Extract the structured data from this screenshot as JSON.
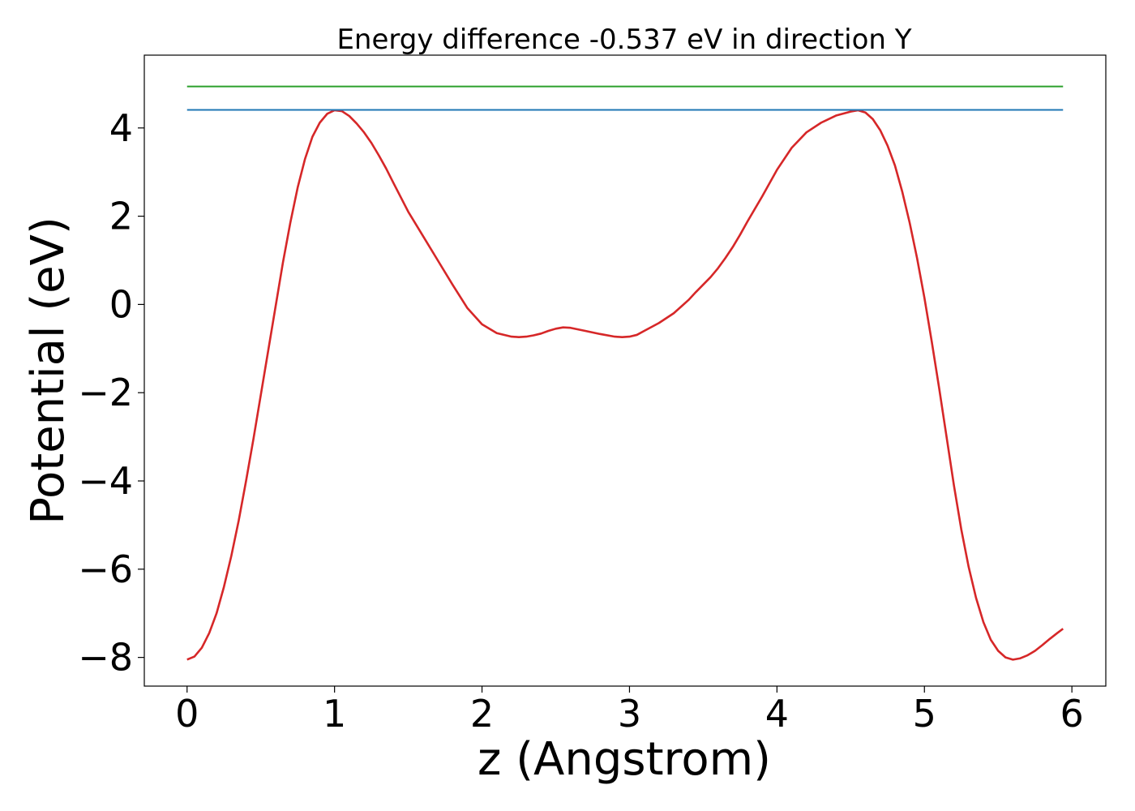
{
  "chart_data": {
    "type": "line",
    "title": "Energy difference -0.537 eV in direction Y",
    "xlabel": "z (Angstrom)",
    "ylabel": "Potential (eV)",
    "xlim": [
      -0.29,
      6.23
    ],
    "ylim": [
      -8.65,
      5.65
    ],
    "xticks": [
      0,
      1,
      2,
      3,
      4,
      5,
      6
    ],
    "xtick_labels": [
      "0",
      "1",
      "2",
      "3",
      "4",
      "5",
      "6"
    ],
    "yticks": [
      -8,
      -6,
      -4,
      -2,
      0,
      2,
      4
    ],
    "ytick_labels": [
      "−8",
      "−6",
      "−4",
      "−2",
      "0",
      "2",
      "4"
    ],
    "grid": false,
    "legend": false,
    "series": [
      {
        "color": "#d62728",
        "x": [
          0,
          0.05,
          0.1,
          0.15,
          0.2,
          0.25,
          0.3,
          0.35,
          0.4,
          0.45,
          0.5,
          0.55,
          0.6,
          0.65,
          0.7,
          0.75,
          0.8,
          0.85,
          0.9,
          0.95,
          1.0,
          1.05,
          1.1,
          1.15,
          1.2,
          1.25,
          1.3,
          1.35,
          1.4,
          1.5,
          1.6,
          1.7,
          1.8,
          1.9,
          2.0,
          2.1,
          2.2,
          2.25,
          2.3,
          2.35,
          2.4,
          2.45,
          2.5,
          2.55,
          2.6,
          2.7,
          2.8,
          2.9,
          2.95,
          3.0,
          3.05,
          3.1,
          3.2,
          3.3,
          3.35,
          3.4,
          3.45,
          3.5,
          3.55,
          3.6,
          3.65,
          3.7,
          3.75,
          3.8,
          3.9,
          4.0,
          4.1,
          4.2,
          4.3,
          4.4,
          4.5,
          4.55,
          4.6,
          4.65,
          4.7,
          4.75,
          4.8,
          4.85,
          4.9,
          4.95,
          5.0,
          5.05,
          5.1,
          5.15,
          5.2,
          5.25,
          5.3,
          5.35,
          5.4,
          5.45,
          5.5,
          5.55,
          5.6,
          5.65,
          5.7,
          5.75,
          5.8,
          5.85,
          5.9,
          5.94
        ],
        "y": [
          -8.05,
          -7.98,
          -7.78,
          -7.45,
          -7.0,
          -6.4,
          -5.7,
          -4.9,
          -4.0,
          -3.05,
          -2.05,
          -1.05,
          -0.05,
          0.95,
          1.85,
          2.65,
          3.3,
          3.8,
          4.12,
          4.32,
          4.4,
          4.38,
          4.27,
          4.1,
          3.9,
          3.66,
          3.38,
          3.08,
          2.75,
          2.1,
          1.55,
          1.0,
          0.45,
          -0.08,
          -0.45,
          -0.65,
          -0.73,
          -0.74,
          -0.73,
          -0.7,
          -0.66,
          -0.6,
          -0.55,
          -0.52,
          -0.53,
          -0.6,
          -0.67,
          -0.73,
          -0.74,
          -0.73,
          -0.69,
          -0.6,
          -0.42,
          -0.2,
          -0.05,
          0.1,
          0.28,
          0.45,
          0.62,
          0.82,
          1.05,
          1.3,
          1.58,
          1.88,
          2.45,
          3.05,
          3.55,
          3.9,
          4.12,
          4.28,
          4.37,
          4.4,
          4.35,
          4.2,
          3.95,
          3.6,
          3.15,
          2.55,
          1.85,
          1.05,
          0.15,
          -0.85,
          -1.9,
          -3.0,
          -4.1,
          -5.1,
          -5.95,
          -6.65,
          -7.2,
          -7.6,
          -7.85,
          -8.0,
          -8.05,
          -8.02,
          -7.95,
          -7.85,
          -7.72,
          -7.58,
          -7.45,
          -7.35
        ]
      },
      {
        "color": "#2ca02c",
        "x": [
          0,
          5.94
        ],
        "y": [
          4.94,
          4.94
        ]
      },
      {
        "color": "#1f77b4",
        "x": [
          0,
          5.94
        ],
        "y": [
          4.41,
          4.41
        ]
      }
    ]
  }
}
